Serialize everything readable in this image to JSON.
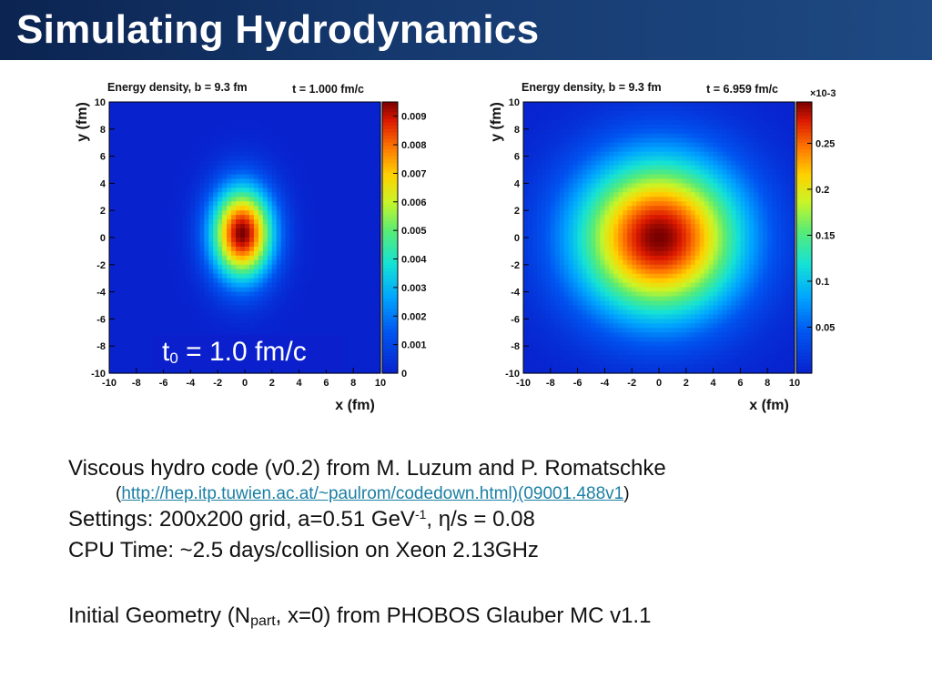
{
  "slide": {
    "title": "Simulating Hydrodynamics",
    "annotation": {
      "t": "t",
      "sub": "0",
      "rest": " = 1.0 fm/c"
    },
    "lines": {
      "l1": "Viscous hydro code (v0.2) from M. Luzum and P. Romatschke",
      "ref_open": "(",
      "ref_link": "http://hep.itp.tuwien.ac.at/~paulrom/codedown.html)(09001.488v1",
      "ref_close": ")",
      "l3_a": "Settings: 200x200 grid, a=0.51 GeV",
      "l3_sup": "-1",
      "l3_b": ", η/s = 0.08",
      "l4": "CPU Time: ~2.5 days/collision on Xeon 2.13GHz",
      "l5_a": "Initial Geometry (N",
      "l5_sub": "part",
      "l5_b": ", x=0) from PHOBOS Glauber MC v1.1"
    }
  },
  "colors": {
    "title_bar": "#163a70",
    "annotation_bg": "#0b20cc",
    "link": "#1b7fa4"
  },
  "chart_data": [
    {
      "type": "heatmap",
      "title": "Energy density, b = 9.3 fm",
      "time_label": "t = 1.000 fm/c",
      "xlabel": "x (fm)",
      "ylabel": "y (fm)",
      "xlim": [
        -10,
        10
      ],
      "ylim": [
        -10,
        10
      ],
      "x_ticks": [
        "-10",
        "-8",
        "-6",
        "-4",
        "-2",
        "0",
        "2",
        "4",
        "6",
        "8",
        "10"
      ],
      "y_ticks": [
        "-10",
        "-8",
        "-6",
        "-4",
        "-2",
        "0",
        "2",
        "4",
        "6",
        "8",
        "10"
      ],
      "colorbar_range": [
        0,
        0.0095
      ],
      "colorbar_ticks": [
        {
          "value": 0,
          "label": "0"
        },
        {
          "value": 0.001,
          "label": "0.001"
        },
        {
          "value": 0.002,
          "label": "0.002"
        },
        {
          "value": 0.003,
          "label": "0.003"
        },
        {
          "value": 0.004,
          "label": "0.004"
        },
        {
          "value": 0.005,
          "label": "0.005"
        },
        {
          "value": 0.006,
          "label": "0.006"
        },
        {
          "value": 0.007,
          "label": "0.007"
        },
        {
          "value": 0.008,
          "label": "0.008"
        },
        {
          "value": 0.009,
          "label": "0.009"
        }
      ],
      "colorbar_multiplier": "",
      "peak": 0.0095,
      "center": [
        -0.2,
        0.3
      ],
      "sigma_x": 1.6,
      "sigma_y": 2.4,
      "grid": false,
      "colormap": "rainbow (blue to dark red)"
    },
    {
      "type": "heatmap",
      "title": "Energy density, b = 9.3 fm",
      "time_label": "t = 6.959 fm/c",
      "xlabel": "x (fm)",
      "ylabel": "y (fm)",
      "xlim": [
        -10,
        10
      ],
      "ylim": [
        -10,
        10
      ],
      "x_ticks": [
        "-10",
        "-8",
        "-6",
        "-4",
        "-2",
        "0",
        "2",
        "4",
        "6",
        "8",
        "10"
      ],
      "y_ticks": [
        "-10",
        "-8",
        "-6",
        "-4",
        "-2",
        "0",
        "2",
        "4",
        "6",
        "8",
        "10"
      ],
      "colorbar_range": [
        0,
        0.295
      ],
      "colorbar_ticks": [
        {
          "value": 0.05,
          "label": "0.05"
        },
        {
          "value": 0.1,
          "label": "0.1"
        },
        {
          "value": 0.15,
          "label": "0.15"
        },
        {
          "value": 0.2,
          "label": "0.2"
        },
        {
          "value": 0.25,
          "label": "0.25"
        }
      ],
      "colorbar_multiplier": "×10-3",
      "peak": 0.295,
      "center": [
        0,
        0
      ],
      "sigma_x": 4.3,
      "sigma_y": 4.1,
      "grid": false,
      "colormap": "rainbow (blue to dark red)"
    }
  ]
}
